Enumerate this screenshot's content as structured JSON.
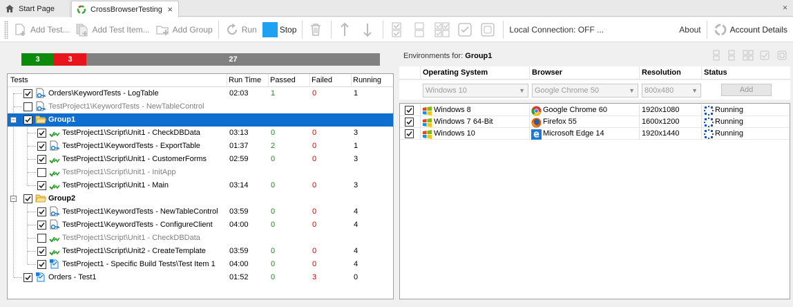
{
  "tabs": [
    {
      "label": "Start Page",
      "active": false
    },
    {
      "label": "CrossBrowserTesting",
      "active": true
    }
  ],
  "toolbar": {
    "add_test": "Add Test...",
    "add_test_item": "Add Test Item...",
    "add_group": "Add Group",
    "run": "Run",
    "stop": "Stop",
    "local_connection": "Local Connection: OFF ...",
    "about": "About",
    "account_details": "Account Details"
  },
  "progress": {
    "passed": "3",
    "failed": "3",
    "remaining": "27",
    "passed_color": "#0b8a0b",
    "failed_color": "#e8141b",
    "remaining_color": "#808080"
  },
  "tests_grid": {
    "headers": {
      "tests": "Tests",
      "run_time": "Run Time",
      "passed": "Passed",
      "failed": "Failed",
      "running": "Running"
    },
    "rows": [
      {
        "name": "Orders\\KeywordTests - LogTable",
        "run_time": "02:03",
        "passed": "1",
        "failed": "0",
        "running": "1"
      },
      {
        "name": "TestProject1\\KeywordTests - NewTableControl",
        "run_time": "",
        "passed": "",
        "failed": "",
        "running": ""
      },
      {
        "name": "Group1",
        "run_time": "",
        "passed": "",
        "failed": "",
        "running": ""
      },
      {
        "name": "TestProject1\\Script\\Unit1 - CheckDBData",
        "run_time": "03:13",
        "passed": "0",
        "failed": "0",
        "running": "3"
      },
      {
        "name": "TestProject1\\KeywordTests - ExportTable",
        "run_time": "01:37",
        "passed": "2",
        "failed": "0",
        "running": "1"
      },
      {
        "name": "TestProject1\\Script\\Unit1 - CustomerForms",
        "run_time": "02:59",
        "passed": "0",
        "failed": "0",
        "running": "3"
      },
      {
        "name": "TestProject1\\Script\\Unit1 - InitApp",
        "run_time": "",
        "passed": "",
        "failed": "",
        "running": ""
      },
      {
        "name": "TestProject1\\Script\\Unit1 - Main",
        "run_time": "03:14",
        "passed": "0",
        "failed": "0",
        "running": "3"
      },
      {
        "name": "Group2",
        "run_time": "",
        "passed": "",
        "failed": "",
        "running": ""
      },
      {
        "name": "TestProject1\\KeywordTests - NewTableControl",
        "run_time": "03:59",
        "passed": "0",
        "failed": "0",
        "running": "4"
      },
      {
        "name": "TestProject1\\KeywordTests - ConfigureClient",
        "run_time": "04:00",
        "passed": "0",
        "failed": "0",
        "running": "4"
      },
      {
        "name": "TestProject1\\Script\\Unit1 - CheckDBData",
        "run_time": "",
        "passed": "",
        "failed": "",
        "running": ""
      },
      {
        "name": "TestProject1\\Script\\Unit2 - CreateTemplate",
        "run_time": "03:59",
        "passed": "0",
        "failed": "0",
        "running": "4"
      },
      {
        "name": "TestProject1 - Specific Build Tests\\Test Item 1",
        "run_time": "04:00",
        "passed": "0",
        "failed": "0",
        "running": "4"
      },
      {
        "name": "Orders - Test1",
        "run_time": "01:52",
        "passed": "0",
        "failed": "3",
        "running": "0"
      }
    ]
  },
  "environments": {
    "title_prefix": "Environments for:",
    "group": "Group1",
    "headers": {
      "os": "Operating System",
      "browser": "Browser",
      "resolution": "Resolution",
      "status": "Status"
    },
    "filter": {
      "os": "Windows 10",
      "browser": "Google Chrome 50",
      "resolution": "800x480",
      "add": "Add"
    },
    "rows": [
      {
        "os": "Windows 8",
        "browser": "Google Chrome 60",
        "resolution": "1920x1080",
        "status": "Running"
      },
      {
        "os": "Windows 7 64-Bit",
        "browser": "Firefox 55",
        "resolution": "1600x1200",
        "status": "Running"
      },
      {
        "os": "Windows 10",
        "browser": "Microsoft Edge 14",
        "resolution": "1920x1440",
        "status": "Running"
      }
    ]
  }
}
